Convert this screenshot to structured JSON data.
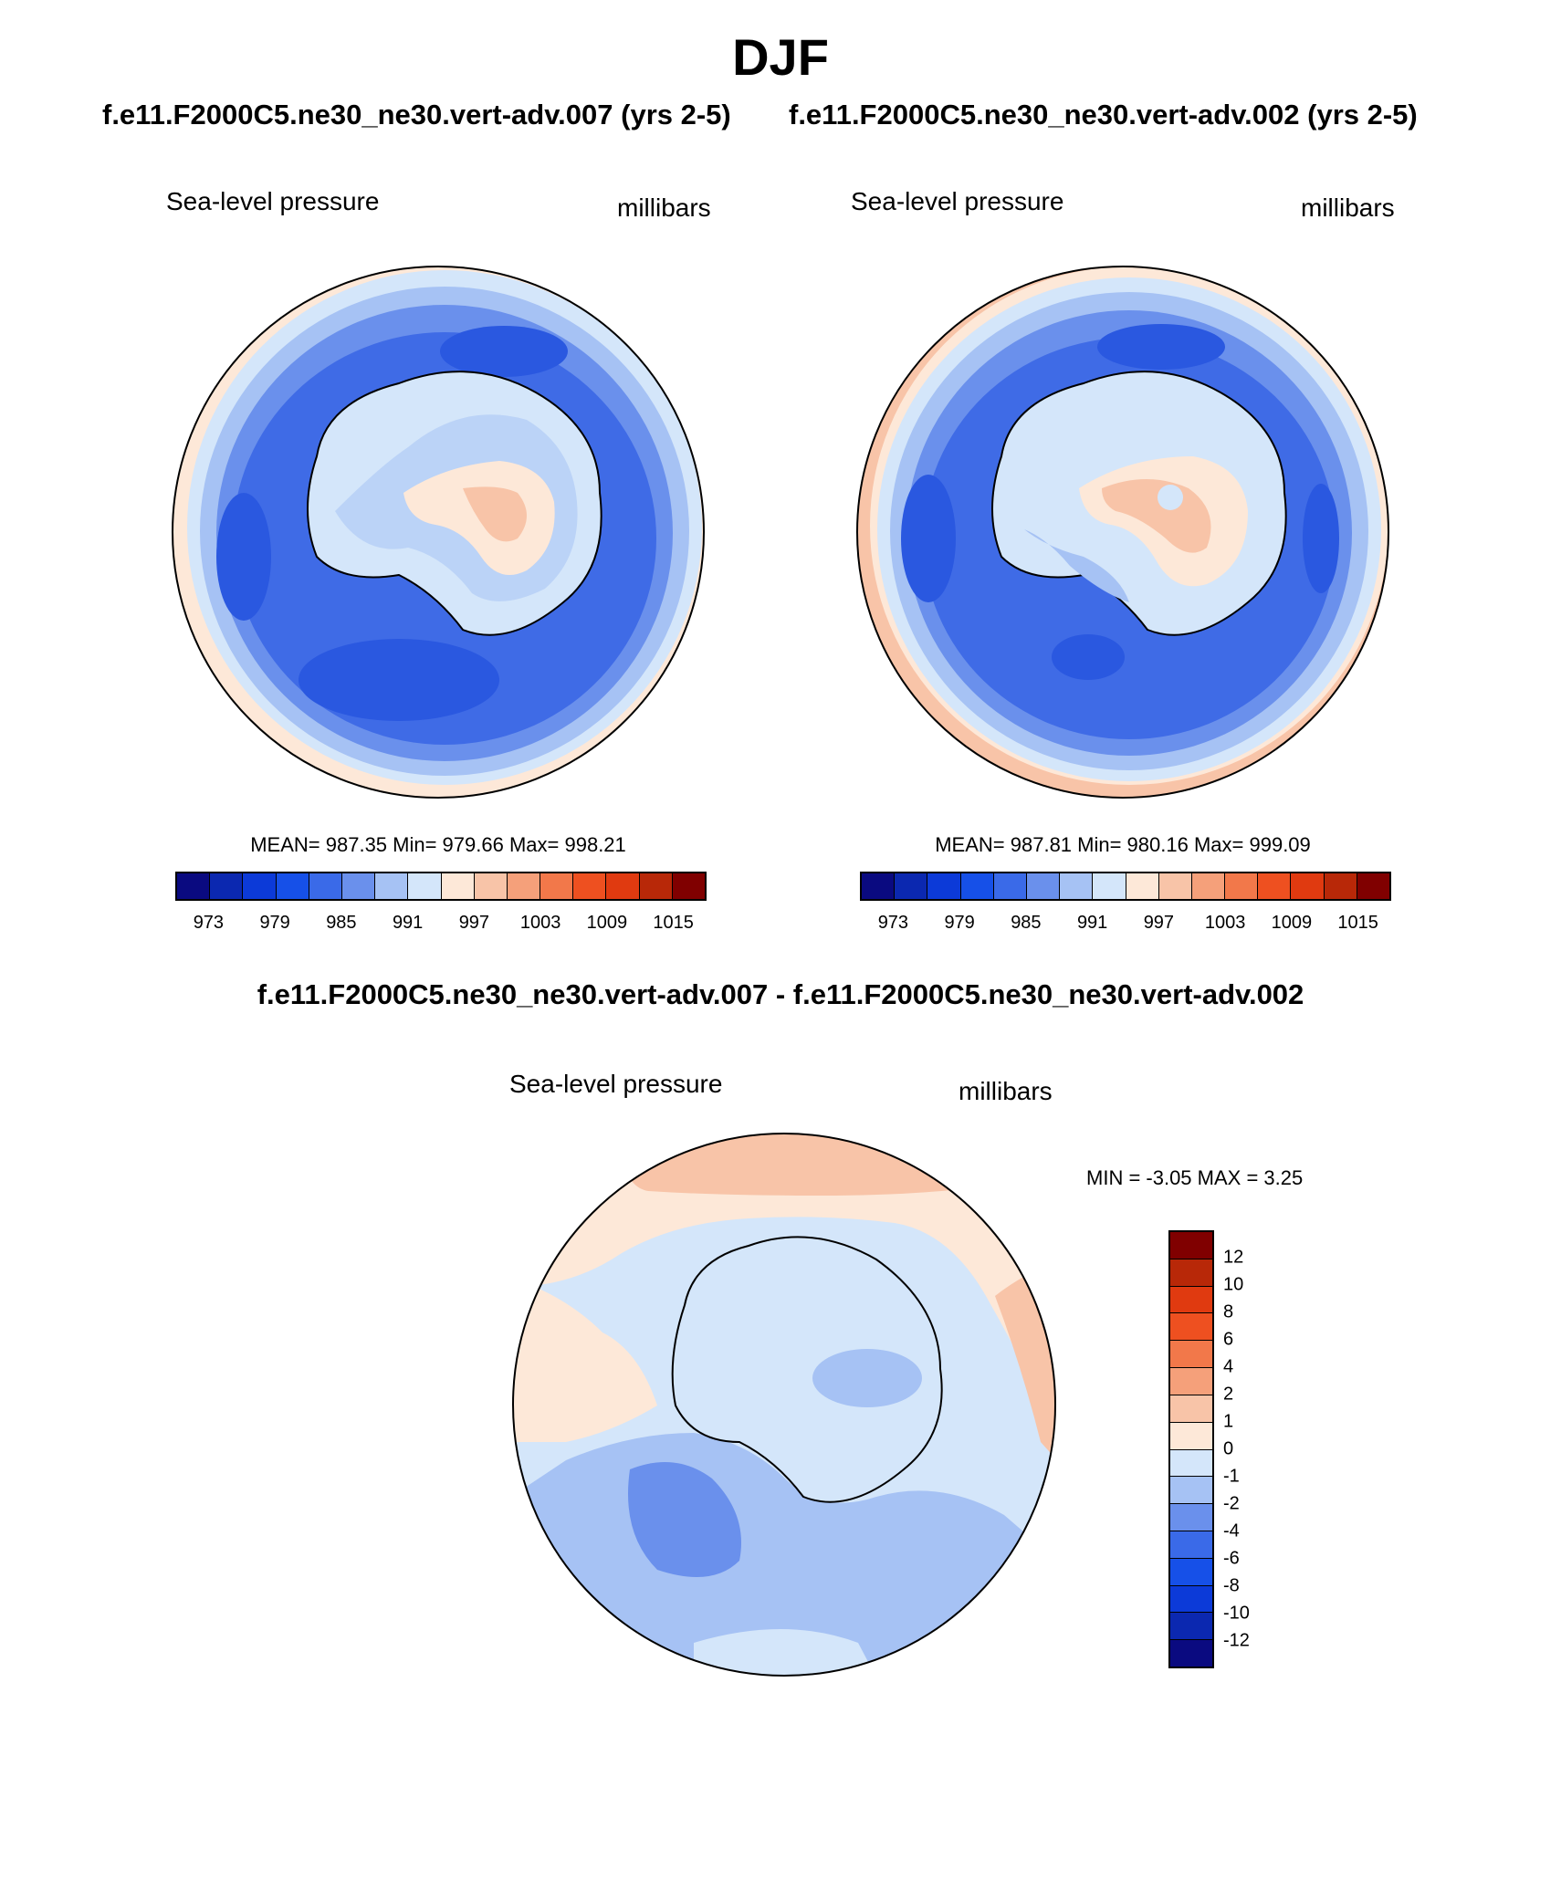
{
  "header": {
    "season": "DJF",
    "case1_title": "f.e11.F2000C5.ne30_ne30.vert-adv.007 (yrs 2-5)",
    "case2_title": "f.e11.F2000C5.ne30_ne30.vert-adv.002 (yrs 2-5)",
    "diff_title": "f.e11.F2000C5.ne30_ne30.vert-adv.007 - f.e11.F2000C5.ne30_ne30.vert-adv.002"
  },
  "panels": [
    {
      "variable": "Sea-level pressure",
      "units": "millibars",
      "stats": "MEAN= 987.35  Min= 979.66  Max= 998.21"
    },
    {
      "variable": "Sea-level pressure",
      "units": "millibars",
      "stats": "MEAN= 987.81  Min= 980.16  Max= 999.09"
    }
  ],
  "difference_panel": {
    "variable": "Sea-level pressure",
    "units": "millibars",
    "stats": "MIN =  -3.05 MAX =   3.25"
  },
  "main_colorbar": {
    "colors": [
      "#0a0a80",
      "#0b28b0",
      "#0c3ad8",
      "#1650e8",
      "#3a6ae8",
      "#6a90ec",
      "#a6c2f4",
      "#d4e6fa",
      "#fde8d8",
      "#f8c4a8",
      "#f5a07a",
      "#f2784a",
      "#ee5020",
      "#e03a10",
      "#b82808",
      "#800000"
    ],
    "tick_labels": [
      "973",
      "979",
      "985",
      "991",
      "997",
      "1003",
      "1009",
      "1015"
    ]
  },
  "diff_colorbar": {
    "colors_top_to_bottom": [
      "#800000",
      "#b82808",
      "#e03a10",
      "#ee5020",
      "#f2784a",
      "#f5a07a",
      "#f8c4a8",
      "#fde8d8",
      "#d4e6fa",
      "#a6c2f4",
      "#6a90ec",
      "#3a6ae8",
      "#1650e8",
      "#0c3ad8",
      "#0b28b0",
      "#0a0a80"
    ],
    "tick_labels": [
      "12",
      "10",
      "8",
      "6",
      "4",
      "2",
      "1",
      "0",
      "-1",
      "-2",
      "-4",
      "-6",
      "-8",
      "-10",
      "-12"
    ]
  },
  "map_colors": {
    "ocean_deep": "#3f6be6",
    "ocean_mid": "#6a90ec",
    "ocean_light": "#a6c2f4",
    "ocean_pale": "#d4e6fa",
    "warm_pale": "#fde8d8",
    "warm_light": "#f8c4a8",
    "warm_mid": "#f5a07a"
  }
}
